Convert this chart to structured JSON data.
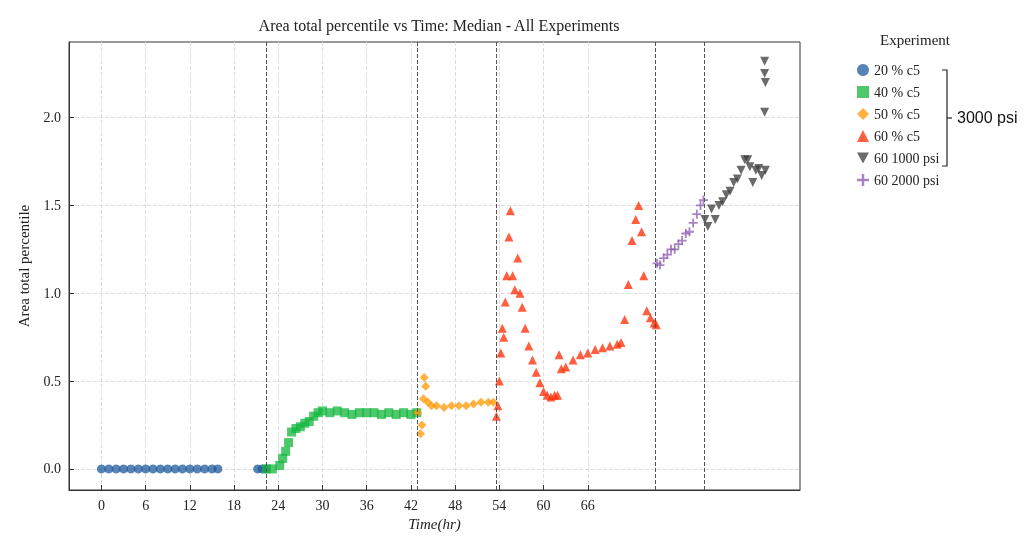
{
  "chart_data": {
    "type": "scatter",
    "title": "Area total percentile vs Time: Median - All Experiments",
    "xlabel": "Time(hr)",
    "ylabel": "Area total percentile",
    "legend_title": "Experiment",
    "legend": "right",
    "grid": true,
    "xlim": [
      -4.4,
      94.8
    ],
    "xticks": [
      0,
      6,
      12,
      18,
      24,
      30,
      36,
      42,
      48,
      54,
      60,
      66
    ],
    "ylim": [
      -0.12,
      2.43
    ],
    "yticks": [
      {
        "value": 0,
        "label": "0.0"
      },
      0.5,
      {
        "value": 1,
        "label": "1.0"
      },
      1.5,
      {
        "value": 2,
        "label": "2.0"
      }
    ],
    "ref_lines": [
      {
        "axis": "x",
        "value": 22.4
      },
      {
        "axis": "x",
        "value": 42.8
      },
      {
        "axis": "x",
        "value": 53.6
      },
      {
        "axis": "x",
        "value": 75.2
      },
      {
        "axis": "x",
        "value": 81.8
      }
    ],
    "annotations": [
      "3000 psi"
    ],
    "series": [
      {
        "name": "20 % c5",
        "color": "#1f5a9e",
        "marker": "circle",
        "x": [
          0,
          1,
          2,
          3,
          4,
          5,
          6,
          7,
          8,
          9,
          10,
          11,
          12,
          13,
          14,
          15,
          15.8,
          21.2,
          21.8,
          22.3
        ],
        "values": [
          0,
          0,
          0,
          0,
          0,
          0,
          0,
          0,
          0,
          0,
          0,
          0,
          0,
          0,
          0,
          0,
          0,
          0,
          0,
          0
        ]
      },
      {
        "name": "40 % c5",
        "color": "#12b53c",
        "marker": "square",
        "x": [
          22.4,
          23.2,
          24.2,
          24.6,
          25,
          25.4,
          25.8,
          26.4,
          27,
          27.6,
          28.2,
          28.8,
          29.4,
          30,
          31,
          32,
          33,
          34,
          35,
          36,
          37,
          38,
          39,
          40,
          41,
          42,
          42.8
        ],
        "values": [
          0,
          0,
          0.02,
          0.06,
          0.1,
          0.15,
          0.21,
          0.23,
          0.24,
          0.26,
          0.27,
          0.3,
          0.32,
          0.33,
          0.32,
          0.33,
          0.32,
          0.31,
          0.32,
          0.32,
          0.32,
          0.31,
          0.32,
          0.31,
          0.32,
          0.31,
          0.32
        ]
      },
      {
        "name": "50 % c5",
        "color": "#ff9800",
        "marker": "diamond",
        "x": [
          42.9,
          43.3,
          43.5,
          43.7,
          43.8,
          44,
          44.3,
          44.8,
          45.5,
          46.5,
          47.5,
          48.5,
          49.5,
          50.5,
          51.5,
          52.5,
          53.2
        ],
        "values": [
          0.32,
          0.2,
          0.25,
          0.4,
          0.52,
          0.47,
          0.38,
          0.36,
          0.36,
          0.35,
          0.36,
          0.36,
          0.36,
          0.37,
          0.38,
          0.38,
          0.38
        ]
      },
      {
        "name": "60 % c5",
        "color": "#ff2a00",
        "marker": "triangle",
        "x": [
          53.6,
          53.8,
          54,
          54.2,
          54.4,
          54.6,
          54.8,
          55,
          55.3,
          55.5,
          55.8,
          56.1,
          56.5,
          56.8,
          57.1,
          57.5,
          58,
          58.5,
          59,
          59.5,
          60,
          60.5,
          61,
          61.5,
          61.9,
          62.1,
          62.4,
          63,
          64,
          65,
          66,
          67,
          68,
          69,
          70,
          70.5,
          71,
          71.5,
          72,
          72.5,
          72.9,
          73.3,
          73.6,
          74,
          74.5,
          75,
          75.3
        ],
        "values": [
          0.3,
          0.36,
          0.5,
          0.66,
          0.8,
          0.75,
          0.95,
          1.1,
          1.32,
          1.47,
          1.1,
          1.02,
          1.2,
          1.0,
          0.92,
          0.8,
          0.7,
          0.62,
          0.55,
          0.49,
          0.44,
          0.42,
          0.41,
          0.42,
          0.42,
          0.65,
          0.57,
          0.58,
          0.62,
          0.65,
          0.66,
          0.68,
          0.69,
          0.7,
          0.71,
          0.72,
          0.85,
          1.05,
          1.3,
          1.42,
          1.5,
          1.35,
          1.1,
          0.9,
          0.86,
          0.83,
          0.82
        ]
      },
      {
        "name": "60 1000 psi",
        "color": "#3a3a3a",
        "marker": "triangle-down",
        "x": [
          81.9,
          82.3,
          82.8,
          83.3,
          83.8,
          84.3,
          84.8,
          85.3,
          85.8,
          86.3,
          86.8,
          87.3,
          87.7,
          88,
          88.4,
          88.8,
          89.2,
          89.6,
          90.1,
          90,
          90,
          90.1,
          90
        ],
        "values": [
          1.42,
          1.38,
          1.48,
          1.42,
          1.5,
          1.52,
          1.56,
          1.58,
          1.63,
          1.65,
          1.7,
          1.76,
          1.76,
          1.72,
          1.63,
          1.7,
          1.71,
          1.67,
          1.7,
          2.32,
          2.25,
          2.2,
          2.03
        ]
      },
      {
        "name": "60 2000 psi",
        "color": "#8a5aae",
        "marker": "cross",
        "x": [
          75.4,
          75.8,
          76.3,
          76.8,
          77.3,
          77.8,
          78.3,
          78.8,
          79.3,
          79.8,
          80.3,
          80.8,
          81.3,
          81.7
        ],
        "values": [
          1.17,
          1.16,
          1.2,
          1.22,
          1.25,
          1.25,
          1.28,
          1.3,
          1.34,
          1.35,
          1.4,
          1.45,
          1.5,
          1.53
        ]
      }
    ]
  }
}
